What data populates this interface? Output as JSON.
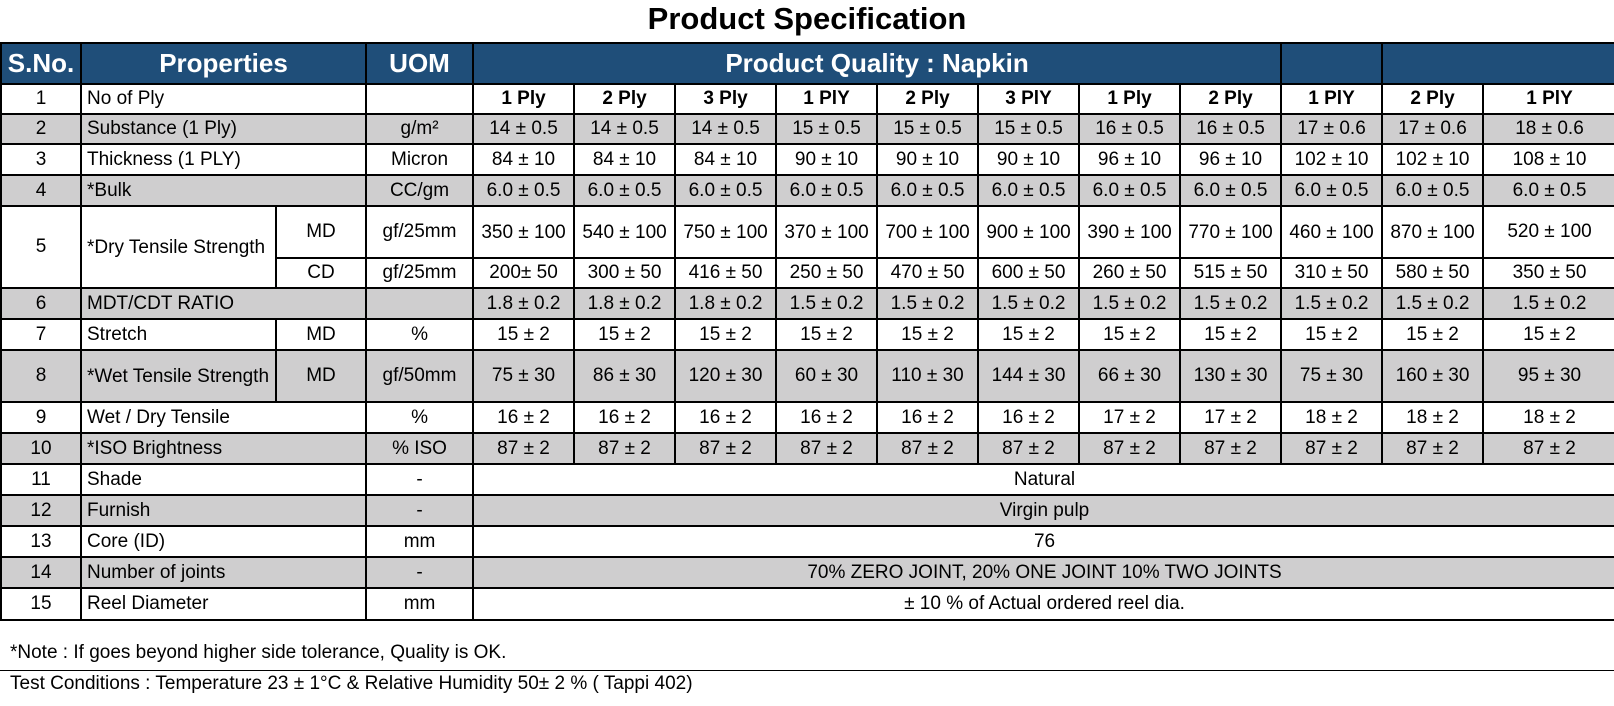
{
  "title": "Product Specification",
  "headers": {
    "sno": "S.No.",
    "properties": "Properties",
    "uom": "UOM",
    "product_quality": "Product Quality :  Napkin"
  },
  "rows": [
    {
      "sno": "1",
      "prop": "No of Ply",
      "sub": "",
      "uom": "",
      "values": [
        "1 Ply",
        "2 Ply",
        "3 Ply",
        "1 PlY",
        "2 Ply",
        "3 PlY",
        "1 Ply",
        "2 Ply",
        "1 PlY",
        "2 Ply",
        "1 PlY"
      ]
    },
    {
      "sno": "2",
      "prop": "Substance (1 Ply)",
      "sub": "",
      "uom": "g/m²",
      "values": [
        "14 ± 0.5",
        "14 ± 0.5",
        "14 ± 0.5",
        "15 ± 0.5",
        "15 ± 0.5",
        "15 ± 0.5",
        "16 ± 0.5",
        "16 ± 0.5",
        "17 ± 0.6",
        "17 ± 0.6",
        "18 ± 0.6"
      ]
    },
    {
      "sno": "3",
      "prop": "Thickness (1 PLY)",
      "sub": "",
      "uom": "Micron",
      "values": [
        "84 ± 10",
        "84 ± 10",
        "84 ± 10",
        "90 ± 10",
        "90 ± 10",
        "90 ± 10",
        "96 ± 10",
        "96 ± 10",
        "102 ± 10",
        "102 ± 10",
        "108 ± 10"
      ]
    },
    {
      "sno": "4",
      "prop": "*Bulk",
      "sub": "",
      "uom": "CC/gm",
      "values": [
        "6.0 ± 0.5",
        "6.0 ± 0.5",
        "6.0 ± 0.5",
        "6.0 ± 0.5",
        "6.0 ± 0.5",
        "6.0 ± 0.5",
        "6.0 ± 0.5",
        "6.0 ± 0.5",
        "6.0 ± 0.5",
        "6.0 ± 0.5",
        "6.0 ± 0.5"
      ]
    },
    {
      "sno": "5",
      "prop": "*Dry Tensile Strength",
      "sub": "MD",
      "uom": "gf/25mm",
      "values": [
        "350 ± 100",
        "540 ± 100",
        "750 ± 100",
        "370 ± 100",
        "700 ± 100",
        "900 ± 100",
        "390 ± 100",
        "770 ± 100",
        "460 ± 100",
        "870 ± 100",
        "520 ± 100"
      ]
    },
    {
      "sno": "",
      "prop": "",
      "sub": "CD",
      "uom": "gf/25mm",
      "values": [
        "200± 50",
        "300 ± 50",
        "416 ± 50",
        "250 ± 50",
        "470 ± 50",
        "600 ± 50",
        "260 ± 50",
        "515 ± 50",
        "310 ± 50",
        "580 ± 50",
        "350 ± 50"
      ]
    },
    {
      "sno": "6",
      "prop": "MDT/CDT RATIO",
      "sub": "",
      "uom": "",
      "values": [
        "1.8 ± 0.2",
        "1.8 ± 0.2",
        "1.8 ± 0.2",
        "1.5 ± 0.2",
        "1.5 ± 0.2",
        "1.5 ± 0.2",
        "1.5 ± 0.2",
        "1.5 ± 0.2",
        "1.5 ± 0.2",
        "1.5 ± 0.2",
        "1.5 ± 0.2"
      ]
    },
    {
      "sno": "7",
      "prop": "Stretch",
      "sub": "MD",
      "uom": "%",
      "values": [
        "15 ± 2",
        "15 ± 2",
        "15 ± 2",
        "15 ± 2",
        "15 ± 2",
        "15 ± 2",
        "15 ± 2",
        "15 ± 2",
        "15 ± 2",
        "15 ± 2",
        "15 ± 2"
      ]
    },
    {
      "sno": "8",
      "prop": "*Wet Tensile Strength",
      "sub": "MD",
      "uom": "gf/50mm",
      "values": [
        "75 ± 30",
        "86 ± 30",
        "120 ± 30",
        "60 ± 30",
        "110 ± 30",
        "144 ± 30",
        "66 ± 30",
        "130 ± 30",
        "75 ± 30",
        "160 ± 30",
        "95 ± 30"
      ]
    },
    {
      "sno": "9",
      "prop": "Wet / Dry Tensile",
      "sub": "",
      "uom": "%",
      "values": [
        "16 ± 2",
        "16 ± 2",
        "16 ± 2",
        "16 ± 2",
        "16 ± 2",
        "16 ± 2",
        "17 ± 2",
        "17 ± 2",
        "18 ± 2",
        "18 ± 2",
        "18 ± 2"
      ]
    },
    {
      "sno": "10",
      "prop": "*ISO Brightness",
      "sub": "",
      "uom": "% ISO",
      "values": [
        "87 ± 2",
        "87 ± 2",
        "87 ± 2",
        "87 ± 2",
        "87 ± 2",
        "87 ± 2",
        "87 ± 2",
        "87 ± 2",
        "87 ± 2",
        "87 ± 2",
        "87 ± 2"
      ]
    }
  ],
  "merged_rows": [
    {
      "sno": "11",
      "prop": "Shade",
      "uom": "-",
      "value": "Natural"
    },
    {
      "sno": "12",
      "prop": "Furnish",
      "uom": "-",
      "value": "Virgin pulp"
    },
    {
      "sno": "13",
      "prop": "Core (ID)",
      "uom": "mm",
      "value": "76"
    },
    {
      "sno": "14",
      "prop": "Number of joints",
      "uom": "-",
      "value": "70% ZERO JOINT,  20% ONE JOINT  10% TWO JOINTS"
    },
    {
      "sno": "15",
      "prop": "Reel Diameter",
      "uom": "mm",
      "value": "± 10 % of Actual ordered reel dia."
    }
  ],
  "notes": {
    "note": "*Note : If goes beyond higher side tolerance, Quality is OK.",
    "test_conditions": "Test Conditions : Temperature 23 ± 1°C & Relative Humidity 50± 2 % ( Tappi 402)"
  },
  "colors": {
    "header_bg": "#1f4e79",
    "header_text": "#ffffff",
    "stripe": "#cfcecf"
  }
}
